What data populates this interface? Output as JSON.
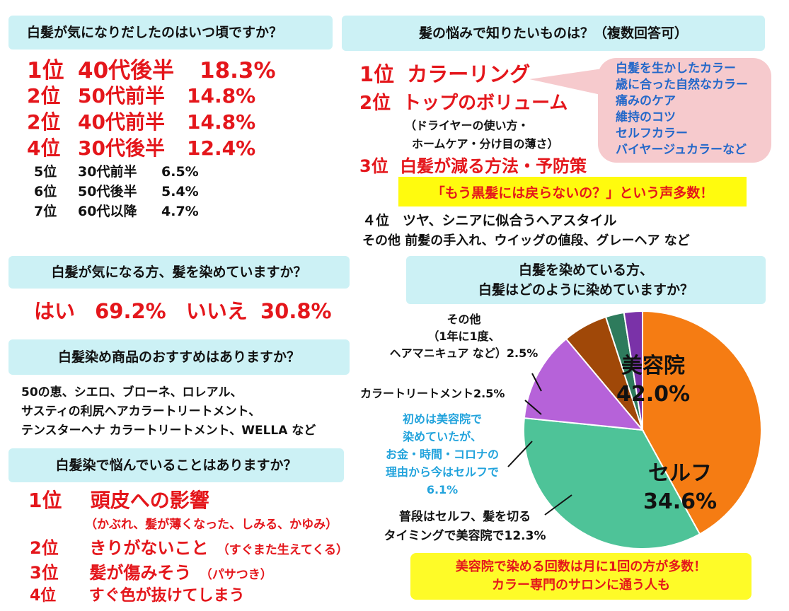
{
  "q1": {
    "header": "白髪が気になりだしたのはいつ頃ですか？",
    "ranks": [
      {
        "rank": "1位",
        "label": "40代後半",
        "value": "18.3%"
      },
      {
        "rank": "2位",
        "label": "50代前半",
        "value": "14.8%"
      },
      {
        "rank": "2位",
        "label": "40代前半",
        "value": "14.8%"
      },
      {
        "rank": "4位",
        "label": "30代後半",
        "value": "12.4%"
      },
      {
        "rank": "5位",
        "label": "30代前半",
        "value": "6.5%"
      },
      {
        "rank": "6位",
        "label": "50代後半",
        "value": "5.4%"
      },
      {
        "rank": "7位",
        "label": "60代以降",
        "value": "4.7%"
      }
    ]
  },
  "q2": {
    "header": "髪の悩みで知りたいものは？（複数回答可）",
    "rank1": {
      "rank": "1位",
      "label": "カラーリング"
    },
    "rank2": {
      "rank": "2位",
      "label": "トップのボリューム"
    },
    "rank2_note1": "（ドライヤーの使い方・",
    "rank2_note2": "ホームケア・分け目の薄さ）",
    "rank3": {
      "rank": "3位",
      "label": "白髪が減る方法・予防策"
    },
    "highlight": "「もう黒髪には戻らないの？」という声多数！",
    "rank4": "４位　ツヤ、シニアに似合うヘアスタイル",
    "others": "その他 前髪の手入れ、ウイッグの値段、グレーヘア など",
    "bubble_items": [
      "白髪を生かしたカラー",
      "歳に合った自然なカラー",
      "痛みのケア",
      "維持のコツ",
      "セルフカラー",
      "バイヤージュカラーなど"
    ]
  },
  "q3": {
    "header": "白髪が気になる方、髪を染めていますか？",
    "yes_label": "はい",
    "yes_value": "69.2%",
    "no_label": "いいえ",
    "no_value": "30.8%"
  },
  "q4": {
    "header": "白髪染め商品のおすすめはありますか？",
    "lines": [
      "50の恵、シエロ、ブローネ、ロレアル、",
      "サスティの利尻ヘアカラートリートメント、",
      "テンスターヘナ カラートリートメント、WELLA など"
    ]
  },
  "q5": {
    "header": "白髪染で悩んでいることはありますか？",
    "rank1": {
      "rank": "1位",
      "label": "頭皮への影響"
    },
    "rank1_note": "（かぶれ、髪が薄くなった、しみる、かゆみ）",
    "rank2": {
      "rank": "2位",
      "label": "きりがないこと",
      "note": "（すぐまた生えてくる）"
    },
    "rank3": {
      "rank": "3位",
      "label": "髪が傷みそう",
      "note": "（パサつき）"
    },
    "rank4": {
      "rank": "4位",
      "label": "すぐ色が抜けてしまう"
    }
  },
  "q6": {
    "header_line1": "白髪を染めている方、",
    "header_line2": "白髪はどのように染めていますか？",
    "footer_line1": "美容院で染める回数は月に1回の方が多数！",
    "footer_line2": "カラー専門のサロンに通う人も"
  },
  "chart_data": {
    "type": "pie",
    "title": "",
    "slices": [
      {
        "label": "美容院",
        "value": 42.0,
        "value_label": "42.0%",
        "color": "#f57c13"
      },
      {
        "label": "セルフ",
        "value": 34.6,
        "value_label": "34.6%",
        "color": "#4ec398"
      },
      {
        "label": "普段はセルフ、髪を切るタイミングで美容院で",
        "value": 12.3,
        "value_label": "12.3%",
        "color": "#b662d9"
      },
      {
        "label": "初めは美容院で染めていたが、お金・時間・コロナの理由から今はセルフで",
        "value": 6.1,
        "value_label": "6.1%",
        "color": "#a04808"
      },
      {
        "label": "カラートリートメント",
        "value": 2.5,
        "value_label": "2.5%",
        "color": "#2e7b5c"
      },
      {
        "label": "その他（1年に1度、ヘアマニキュア など）",
        "value": 2.5,
        "value_label": "2.5%",
        "color": "#7a32a8"
      }
    ],
    "callouts": {
      "biyouin_label": "美容院",
      "biyouin_value": "42.0%",
      "self_label": "セルフ",
      "self_value": "34.6%",
      "futsuu_line1": "普段はセルフ、髪を切る",
      "futsuu_line2": "タイミングで美容院で12.3%",
      "hajime_lines": [
        "初めは美容院で",
        "染めていたが、",
        "お金・時間・コロナの",
        "理由から今はセルフで",
        "6.1%"
      ],
      "treatment": "カラートリートメント2.5%",
      "sonota_lines": [
        "その他",
        "（1年に1度、",
        "ヘアマニキュア など）2.5%"
      ]
    }
  }
}
